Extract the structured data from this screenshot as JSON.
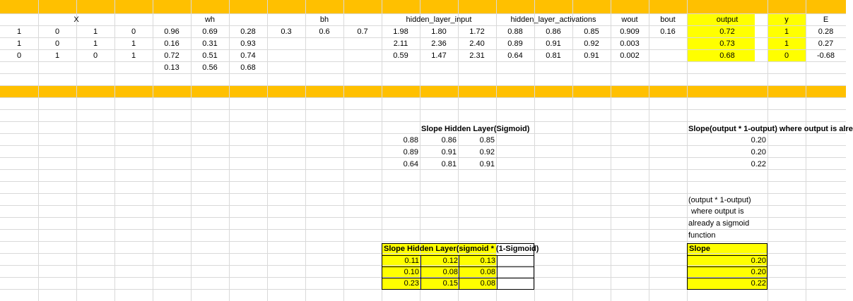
{
  "colors": {
    "header_bar": "#ffc000",
    "highlight": "#ffff00",
    "gridline": "#d9d9d9"
  },
  "headers": {
    "x": "X",
    "wh": "wh",
    "bh": "bh",
    "hidden_layer_input": "hidden_layer_input",
    "hidden_layer_activations": "hidden_layer_activations",
    "wout": "wout",
    "bout": "bout",
    "output": "output",
    "y": "y",
    "e": "E"
  },
  "x_rows": [
    [
      "1",
      "0",
      "1",
      "0"
    ],
    [
      "1",
      "0",
      "1",
      "1"
    ],
    [
      "0",
      "1",
      "0",
      "1"
    ]
  ],
  "wh_rows": [
    [
      "0.96",
      "0.69",
      "0.28"
    ],
    [
      "0.16",
      "0.31",
      "0.93"
    ],
    [
      "0.72",
      "0.51",
      "0.74"
    ],
    [
      "0.13",
      "0.56",
      "0.68"
    ]
  ],
  "bh_row": [
    "0.3",
    "0.6",
    "0.7"
  ],
  "hidden_input_rows": [
    [
      "1.98",
      "1.80",
      "1.72"
    ],
    [
      "2.11",
      "2.36",
      "2.40"
    ],
    [
      "0.59",
      "1.47",
      "2.31"
    ]
  ],
  "hidden_act_rows": [
    [
      "0.88",
      "0.86",
      "0.85"
    ],
    [
      "0.89",
      "0.91",
      "0.92"
    ],
    [
      "0.64",
      "0.81",
      "0.91"
    ]
  ],
  "wout": [
    "0.909",
    "0.003",
    "0.002"
  ],
  "bout": "0.16",
  "output": [
    "0.72",
    "0.73",
    "0.68"
  ],
  "y": [
    "1",
    "1",
    "0"
  ],
  "e": [
    "0.28",
    "0.27",
    "-0.68"
  ],
  "slope_hidden": {
    "title": "Slope Hidden Layer(Sigmoid)",
    "rows": [
      [
        "0.88",
        "0.86",
        "0.85"
      ],
      [
        "0.89",
        "0.91",
        "0.92"
      ],
      [
        "0.64",
        "0.81",
        "0.91"
      ]
    ]
  },
  "slope_output": {
    "title": "Slope(output * 1-output) where output is alre",
    "values": [
      "0.20",
      "0.20",
      "0.22"
    ]
  },
  "note_lines": [
    "(output * 1-output)",
    "where output is",
    "already a sigmoid",
    "function"
  ],
  "slope_hidden2": {
    "title": "Slope Hidden Layer(sigmoid * (1-Sigmoid)",
    "rows": [
      [
        "0.11",
        "0.12",
        "0.13"
      ],
      [
        "0.10",
        "0.08",
        "0.08"
      ],
      [
        "0.23",
        "0.15",
        "0.08"
      ]
    ]
  },
  "slope_box": {
    "title": "Slope",
    "values": [
      "0.20",
      "0.20",
      "0.22"
    ]
  }
}
